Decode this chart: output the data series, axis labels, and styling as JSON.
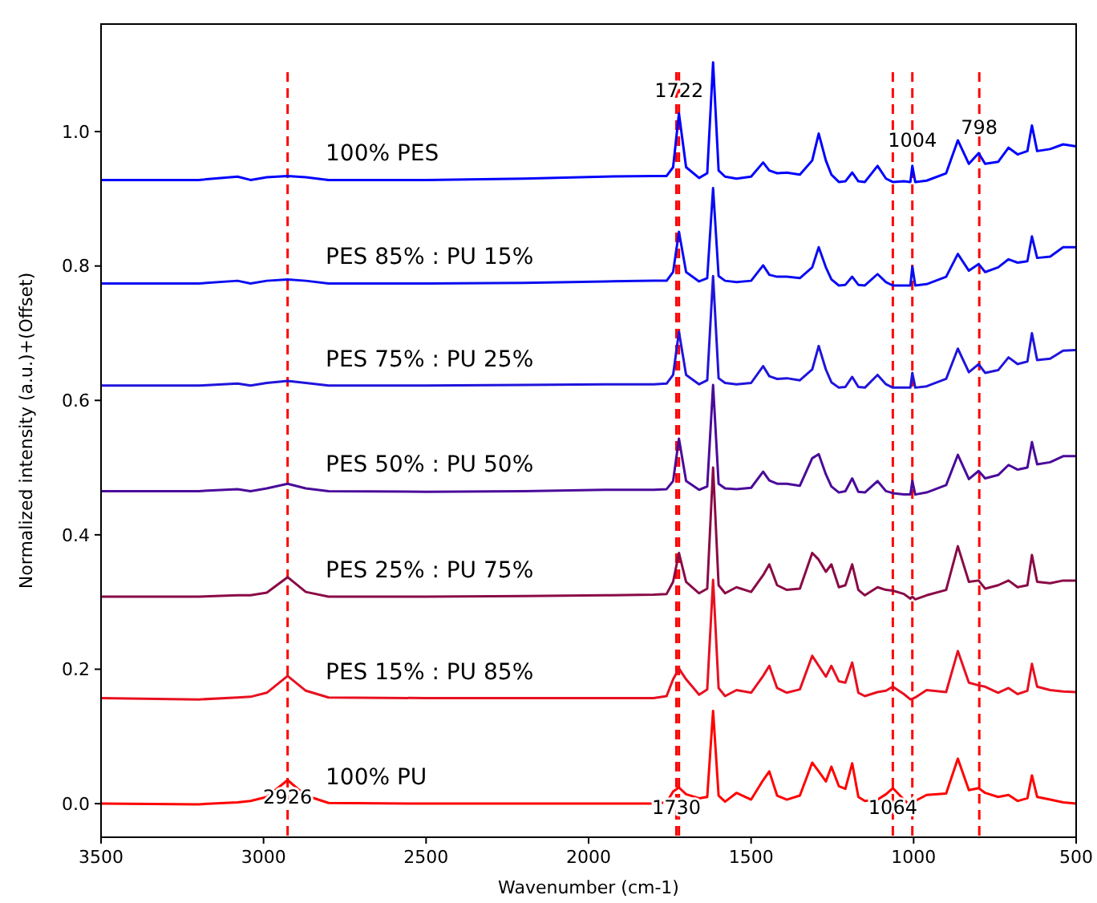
{
  "chart_data": {
    "type": "line",
    "xlabel": "Wavenumber (cm-1)",
    "ylabel": "Normalized intensity (a.u.)+(Offset)",
    "x": [
      3500,
      3200,
      3080,
      3040,
      2990,
      2926,
      2870,
      2800,
      2500,
      2200,
      1950,
      1800,
      1760,
      1740,
      1722,
      1700,
      1660,
      1635,
      1617,
      1600,
      1580,
      1545,
      1500,
      1463,
      1444,
      1420,
      1390,
      1350,
      1312,
      1292,
      1270,
      1253,
      1230,
      1210,
      1189,
      1170,
      1150,
      1111,
      1085,
      1064,
      1030,
      1010,
      1004,
      995,
      960,
      900,
      864,
      830,
      800,
      780,
      740,
      708,
      680,
      650,
      636,
      620,
      580,
      540,
      500
    ],
    "xlim": [
      3500,
      500
    ],
    "xticks": [
      3500,
      3000,
      2500,
      2000,
      1500,
      1000,
      500
    ],
    "ylim": [
      -0.05,
      1.16
    ],
    "yticks": [
      {
        "value": 0,
        "label": "0.0"
      },
      {
        "value": 0.2,
        "label": "0.2"
      },
      {
        "value": 0.4,
        "label": "0.4"
      },
      {
        "value": 0.6,
        "label": "0.6"
      },
      {
        "value": 0.8,
        "label": "0.8"
      },
      {
        "value": 1,
        "label": "1.0"
      }
    ],
    "grid": false,
    "marker": "none",
    "line_style": "solid",
    "series": [
      {
        "name": "100% PES",
        "color": "#0000ff",
        "values": [
          0.928,
          0.928,
          0.933,
          0.928,
          0.932,
          0.934,
          0.932,
          0.928,
          0.928,
          0.93,
          0.933,
          0.934,
          0.934,
          0.947,
          1.027,
          0.947,
          0.931,
          0.938,
          1.103,
          0.942,
          0.933,
          0.93,
          0.933,
          0.954,
          0.942,
          0.938,
          0.939,
          0.936,
          0.957,
          0.997,
          0.957,
          0.936,
          0.925,
          0.926,
          0.939,
          0.926,
          0.925,
          0.949,
          0.93,
          0.925,
          0.926,
          0.925,
          0.949,
          0.925,
          0.927,
          0.938,
          0.987,
          0.952,
          0.968,
          0.952,
          0.955,
          0.976,
          0.966,
          0.971,
          1.009,
          0.971,
          0.974,
          0.981,
          0.978
        ]
      },
      {
        "name": "PES 85% : PU 15%",
        "color": "#0a0cf0",
        "values": [
          0.774,
          0.774,
          0.778,
          0.774,
          0.778,
          0.78,
          0.778,
          0.774,
          0.774,
          0.775,
          0.777,
          0.778,
          0.778,
          0.791,
          0.851,
          0.791,
          0.777,
          0.782,
          0.916,
          0.785,
          0.778,
          0.776,
          0.778,
          0.801,
          0.787,
          0.784,
          0.784,
          0.782,
          0.798,
          0.828,
          0.798,
          0.78,
          0.771,
          0.772,
          0.784,
          0.772,
          0.771,
          0.788,
          0.776,
          0.771,
          0.771,
          0.771,
          0.799,
          0.771,
          0.773,
          0.784,
          0.818,
          0.793,
          0.803,
          0.791,
          0.798,
          0.81,
          0.805,
          0.807,
          0.844,
          0.812,
          0.814,
          0.828,
          0.828
        ]
      },
      {
        "name": "PES 75% : PU 25%",
        "color": "#2014dc",
        "values": [
          0.622,
          0.622,
          0.625,
          0.622,
          0.626,
          0.629,
          0.626,
          0.622,
          0.622,
          0.623,
          0.624,
          0.624,
          0.625,
          0.638,
          0.702,
          0.638,
          0.624,
          0.63,
          0.785,
          0.633,
          0.626,
          0.624,
          0.626,
          0.651,
          0.636,
          0.632,
          0.633,
          0.63,
          0.646,
          0.681,
          0.646,
          0.627,
          0.619,
          0.62,
          0.635,
          0.62,
          0.619,
          0.638,
          0.624,
          0.619,
          0.619,
          0.619,
          0.641,
          0.619,
          0.621,
          0.632,
          0.677,
          0.642,
          0.654,
          0.641,
          0.645,
          0.664,
          0.654,
          0.658,
          0.7,
          0.66,
          0.662,
          0.674,
          0.675
        ]
      },
      {
        "name": "PES 50% : PU 50%",
        "color": "#4a0a9a",
        "values": [
          0.465,
          0.465,
          0.468,
          0.465,
          0.469,
          0.476,
          0.469,
          0.465,
          0.464,
          0.465,
          0.467,
          0.467,
          0.468,
          0.48,
          0.543,
          0.48,
          0.467,
          0.472,
          0.623,
          0.476,
          0.469,
          0.468,
          0.47,
          0.494,
          0.481,
          0.476,
          0.476,
          0.473,
          0.514,
          0.52,
          0.49,
          0.472,
          0.463,
          0.465,
          0.484,
          0.464,
          0.463,
          0.48,
          0.465,
          0.462,
          0.46,
          0.46,
          0.48,
          0.46,
          0.463,
          0.474,
          0.519,
          0.483,
          0.495,
          0.484,
          0.489,
          0.504,
          0.497,
          0.5,
          0.538,
          0.505,
          0.508,
          0.517,
          0.517
        ]
      },
      {
        "name": "PES 25% : PU 75%",
        "color": "#8a0a46",
        "values": [
          0.308,
          0.308,
          0.31,
          0.31,
          0.314,
          0.337,
          0.315,
          0.308,
          0.308,
          0.309,
          0.31,
          0.311,
          0.312,
          0.33,
          0.373,
          0.33,
          0.313,
          0.32,
          0.5,
          0.325,
          0.313,
          0.322,
          0.315,
          0.34,
          0.356,
          0.325,
          0.318,
          0.32,
          0.373,
          0.363,
          0.345,
          0.356,
          0.322,
          0.325,
          0.356,
          0.318,
          0.31,
          0.322,
          0.318,
          0.317,
          0.312,
          0.305,
          0.308,
          0.304,
          0.31,
          0.318,
          0.383,
          0.33,
          0.332,
          0.32,
          0.325,
          0.332,
          0.322,
          0.325,
          0.37,
          0.33,
          0.328,
          0.332,
          0.332
        ]
      },
      {
        "name": "PES 15% : PU 85%",
        "color": "#e81020",
        "values": [
          0.157,
          0.155,
          0.158,
          0.159,
          0.165,
          0.19,
          0.168,
          0.158,
          0.157,
          0.157,
          0.157,
          0.157,
          0.16,
          0.185,
          0.201,
          0.185,
          0.162,
          0.17,
          0.333,
          0.172,
          0.16,
          0.169,
          0.165,
          0.19,
          0.205,
          0.172,
          0.165,
          0.17,
          0.22,
          0.205,
          0.189,
          0.205,
          0.182,
          0.18,
          0.21,
          0.165,
          0.16,
          0.166,
          0.168,
          0.174,
          0.163,
          0.155,
          0.156,
          0.158,
          0.169,
          0.166,
          0.227,
          0.18,
          0.176,
          0.174,
          0.165,
          0.172,
          0.163,
          0.168,
          0.208,
          0.174,
          0.169,
          0.167,
          0.166
        ]
      },
      {
        "name": "100% PU",
        "color": "#ff0000",
        "values": [
          0.0,
          -0.001,
          0.002,
          0.004,
          0.01,
          0.035,
          0.012,
          0.001,
          0.0,
          0.0,
          0.0,
          0.0,
          0.002,
          0.018,
          0.024,
          0.014,
          0.008,
          0.01,
          0.138,
          0.012,
          0.003,
          0.016,
          0.006,
          0.035,
          0.048,
          0.012,
          0.006,
          0.012,
          0.061,
          0.048,
          0.033,
          0.055,
          0.026,
          0.022,
          0.06,
          0.01,
          0.004,
          0.006,
          0.014,
          0.023,
          0.006,
          -0.003,
          0.0,
          0.004,
          0.013,
          0.015,
          0.067,
          0.02,
          0.023,
          0.016,
          0.01,
          0.013,
          0.004,
          0.008,
          0.042,
          0.01,
          0.006,
          0.002,
          0.0
        ]
      }
    ],
    "ref_lines": [
      {
        "axis": "x",
        "value": 2926,
        "color": "#ff0000",
        "line_style": "dashed"
      },
      {
        "axis": "x",
        "value": 1730,
        "color": "#ff0000",
        "line_style": "dashed"
      },
      {
        "axis": "x",
        "value": 1722,
        "color": "#ff0000",
        "line_style": "dashed"
      },
      {
        "axis": "x",
        "value": 1064,
        "color": "#ff0000",
        "line_style": "dashed"
      },
      {
        "axis": "x",
        "value": 1004,
        "color": "#ff0000",
        "line_style": "dashed"
      },
      {
        "axis": "x",
        "value": 798,
        "color": "#ff0000",
        "line_style": "dashed"
      }
    ],
    "annotations": [
      {
        "text": "1722",
        "x": 1722,
        "y": 1.061
      },
      {
        "text": "1004",
        "x": 1004,
        "y": 0.987
      },
      {
        "text": "798",
        "x": 798,
        "y": 1.006
      },
      {
        "text": "2926",
        "x": 2926,
        "y": 0.01
      },
      {
        "text": "1730",
        "x": 1730,
        "y": -0.005
      },
      {
        "text": "1064",
        "x": 1064,
        "y": -0.005
      }
    ]
  }
}
